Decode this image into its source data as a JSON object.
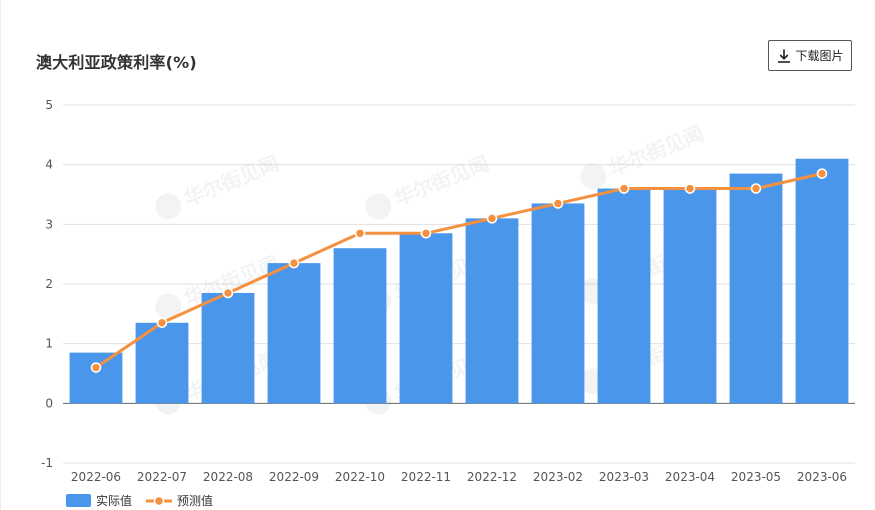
{
  "header": {
    "title": "澳大利亚政策利率(%)",
    "download_label": "下载图片",
    "download_icon": "download-icon"
  },
  "watermark": {
    "text": "华尔街见闻"
  },
  "colors": {
    "bar": "#4a96eb",
    "line": "#f5913e",
    "grid": "#e0e0e0",
    "axis": "#666666"
  },
  "chart_data": {
    "type": "bar",
    "title": "澳大利亚政策利率(%)",
    "xlabel": "",
    "ylabel": "",
    "ylim": [
      -1,
      5
    ],
    "yticks": [
      5,
      4,
      3,
      2,
      1,
      0,
      -1
    ],
    "grid": true,
    "legend_position": "bottom-left",
    "categories": [
      "2022-06",
      "2022-07",
      "2022-08",
      "2022-09",
      "2022-10",
      "2022-11",
      "2022-12",
      "2023-02",
      "2023-03",
      "2023-04",
      "2023-05",
      "2023-06"
    ],
    "series": [
      {
        "name": "实际值",
        "type": "bar",
        "values": [
          0.85,
          1.35,
          1.85,
          2.35,
          2.6,
          2.85,
          3.1,
          3.35,
          3.6,
          3.6,
          3.85,
          4.1
        ]
      },
      {
        "name": "预测值",
        "type": "line",
        "values": [
          0.6,
          1.35,
          1.85,
          2.35,
          2.85,
          2.85,
          3.1,
          3.35,
          3.6,
          3.6,
          3.6,
          3.85
        ]
      }
    ]
  }
}
